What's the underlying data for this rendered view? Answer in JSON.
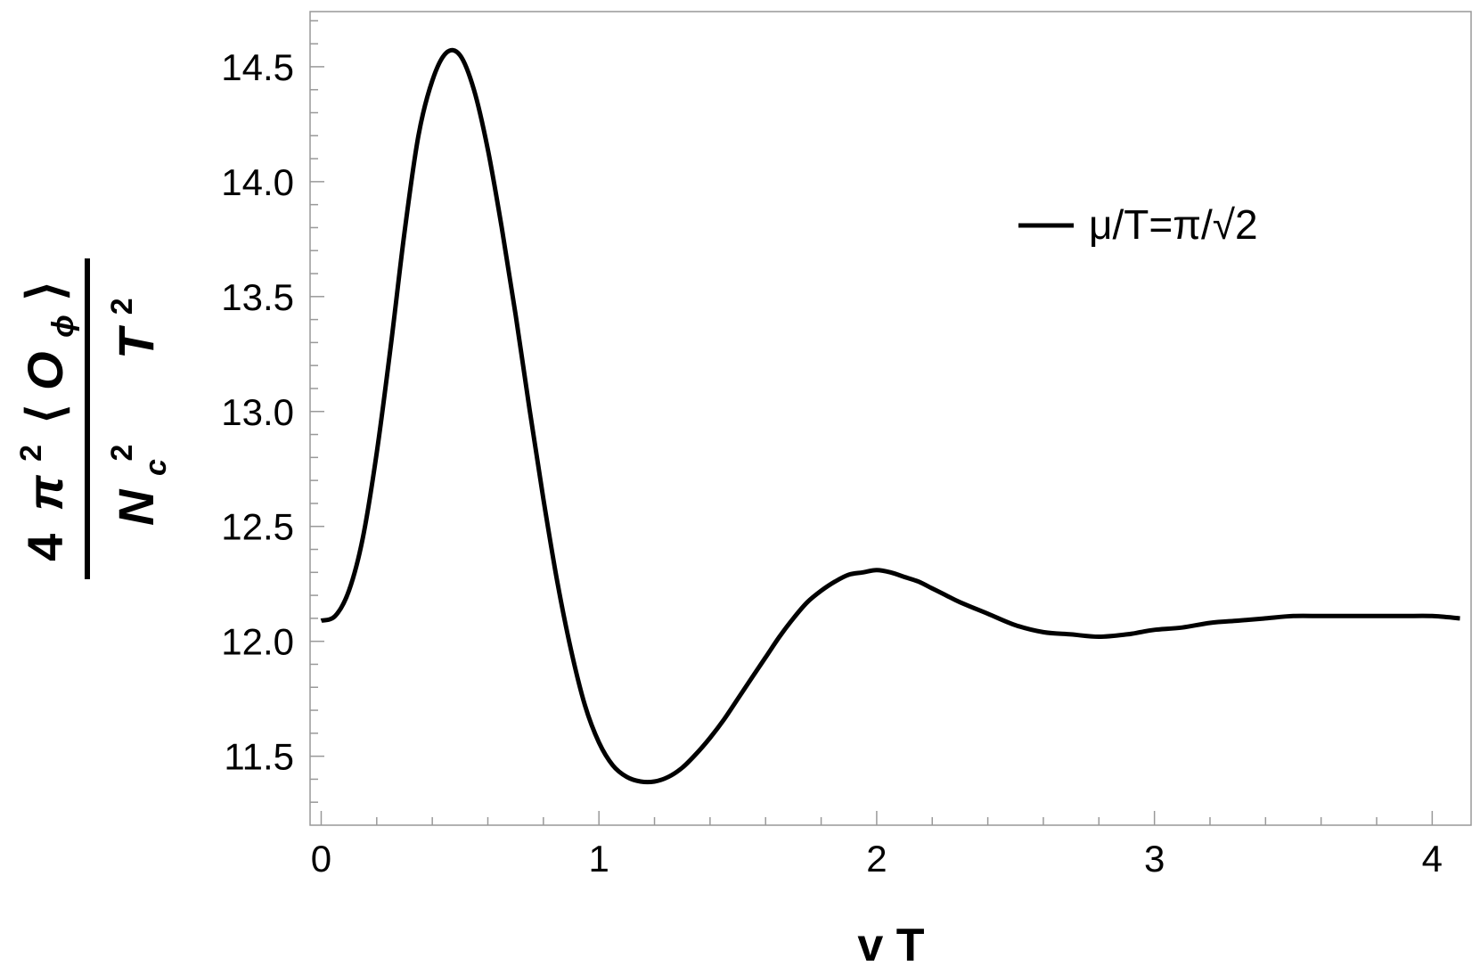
{
  "chart_data": {
    "type": "line",
    "xlabel": "v T",
    "ylabel": {
      "num_coef": "4",
      "num_pi": "π",
      "num_pi_sup": "2",
      "num_open": "⟨",
      "num_op": "O",
      "num_op_sub": "ϕ",
      "num_close": "⟩",
      "den_n": "N",
      "den_n_sub": "c",
      "den_n_sup": "2",
      "den_t": "T",
      "den_t_sup": "2"
    },
    "xlim": [
      -0.04,
      4.14
    ],
    "ylim": [
      11.2,
      14.74
    ],
    "xticks": [
      0,
      1,
      2,
      3,
      4
    ],
    "xtick_labels": [
      "0",
      "1",
      "2",
      "3",
      "4"
    ],
    "yticks": [
      11.5,
      12.0,
      12.5,
      13.0,
      13.5,
      14.0,
      14.5
    ],
    "ytick_labels": [
      "11.5",
      "12.0",
      "12.5",
      "13.0",
      "13.5",
      "14.0",
      "14.5"
    ],
    "grid": false,
    "legend_position": "top-right",
    "series": [
      {
        "name": "μ/T=π/√2",
        "color": "#000000",
        "x": [
          0.0,
          0.05,
          0.1,
          0.15,
          0.2,
          0.25,
          0.3,
          0.35,
          0.4,
          0.45,
          0.5,
          0.55,
          0.6,
          0.65,
          0.7,
          0.75,
          0.8,
          0.85,
          0.9,
          0.95,
          1.0,
          1.05,
          1.1,
          1.15,
          1.2,
          1.25,
          1.3,
          1.35,
          1.4,
          1.45,
          1.5,
          1.55,
          1.6,
          1.65,
          1.7,
          1.75,
          1.8,
          1.85,
          1.9,
          1.95,
          2.0,
          2.05,
          2.1,
          2.15,
          2.2,
          2.25,
          2.3,
          2.4,
          2.5,
          2.6,
          2.7,
          2.8,
          2.9,
          2.95,
          3.0,
          3.1,
          3.2,
          3.3,
          3.4,
          3.5,
          3.6,
          3.7,
          3.8,
          3.9,
          4.0,
          4.1
        ],
        "y": [
          12.09,
          12.11,
          12.22,
          12.45,
          12.82,
          13.28,
          13.78,
          14.2,
          14.44,
          14.56,
          14.55,
          14.4,
          14.14,
          13.8,
          13.42,
          13.01,
          12.62,
          12.26,
          11.96,
          11.72,
          11.56,
          11.46,
          11.41,
          11.39,
          11.39,
          11.41,
          11.45,
          11.51,
          11.58,
          11.66,
          11.75,
          11.84,
          11.93,
          12.02,
          12.1,
          12.17,
          12.22,
          12.26,
          12.29,
          12.3,
          12.31,
          12.3,
          12.28,
          12.26,
          12.23,
          12.2,
          12.17,
          12.12,
          12.07,
          12.04,
          12.03,
          12.02,
          12.03,
          12.04,
          12.05,
          12.06,
          12.08,
          12.09,
          12.1,
          12.11,
          12.11,
          12.11,
          12.11,
          12.11,
          12.11,
          12.1
        ]
      }
    ]
  }
}
